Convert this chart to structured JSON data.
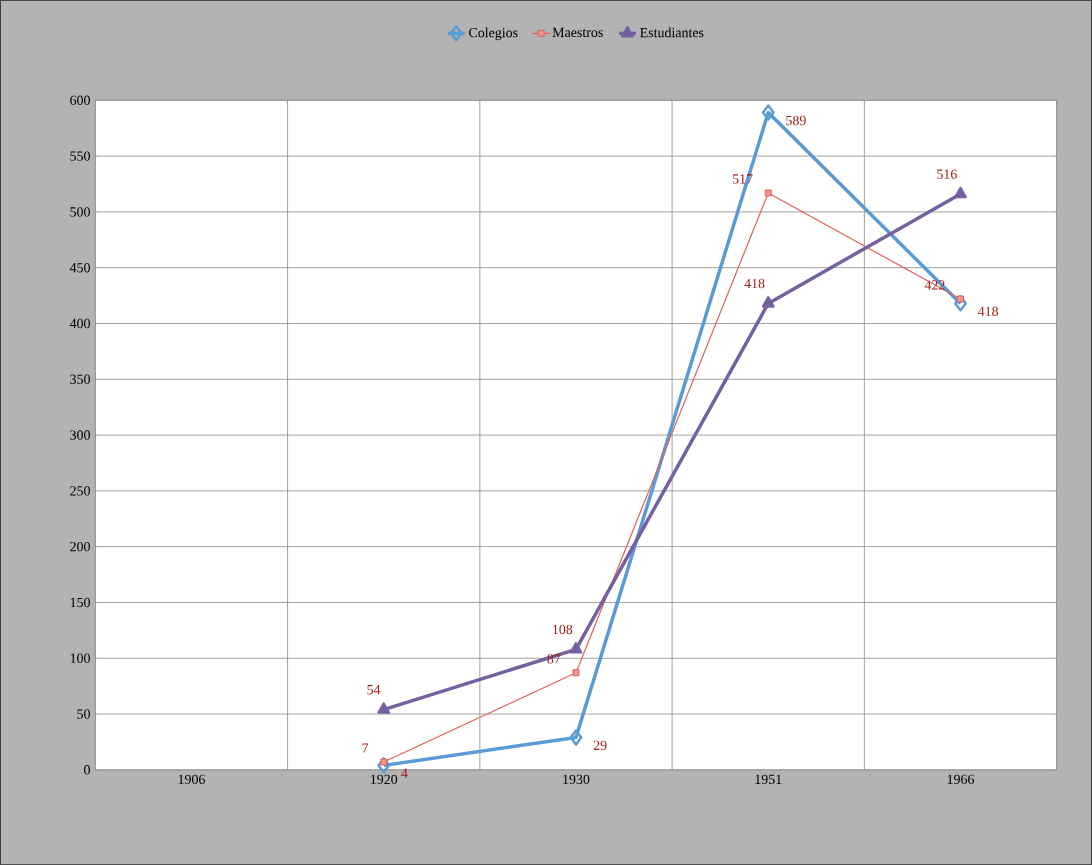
{
  "chart_data": {
    "type": "line",
    "categories": [
      "1906",
      "1920",
      "1930",
      "1951",
      "1966"
    ],
    "series": [
      {
        "name": "Colegios",
        "color": "#5b9bd5",
        "marker": "diamond",
        "values": [
          null,
          4,
          29,
          589,
          418
        ]
      },
      {
        "name": "Maestros",
        "color": "#e0605a",
        "marker": "square",
        "values": [
          null,
          7,
          87,
          517,
          422
        ]
      },
      {
        "name": "Estudiantes",
        "color": "#7560a0",
        "marker": "triangle",
        "values": [
          null,
          54,
          108,
          418,
          516
        ]
      }
    ],
    "ylim": [
      0,
      600
    ],
    "yticks": [
      0,
      50,
      100,
      150,
      200,
      250,
      300,
      350,
      400,
      450,
      500,
      550,
      600
    ],
    "grid": true,
    "legend": "top",
    "data_labels": true
  }
}
